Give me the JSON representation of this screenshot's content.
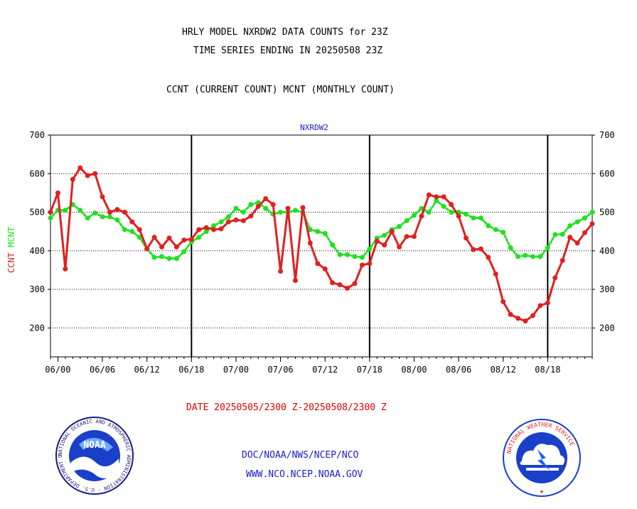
{
  "header": {
    "title_line1": "HRLY MODEL NXRDW2 DATA COUNTS for 23Z",
    "title_line2": "TIME SERIES ENDING IN 20250508 23Z",
    "subtitle": "CCNT (CURRENT COUNT) MCNT (MONTHLY COUNT)"
  },
  "footer": {
    "date_range": "DATE 20250505/2300 Z-20250508/2300 Z",
    "org_path": "DOC/NOAA/NWS/NCEP/NCO",
    "website": "WWW.NCO.NCEP.NOAA.GOV"
  },
  "logos": {
    "noaa_text": "NOAA",
    "noaa_ring_text": "NATIONAL OCEANIC AND ATMOSPHERIC ADMINISTRATION · U.S. DEPARTMENT OF COMMERCE ·",
    "nws_ring_text": "NATIONAL WEATHER SERVICE"
  },
  "chart_data": {
    "type": "line",
    "title": "NXRDW2",
    "ylabel_parts": [
      "CCNT",
      "MCNT"
    ],
    "ylim": [
      125,
      700
    ],
    "xlim": [
      0,
      73
    ],
    "yticks": [
      200,
      300,
      400,
      500,
      600,
      700
    ],
    "xticks": [
      {
        "x": 1,
        "label": "06/00"
      },
      {
        "x": 7,
        "label": "06/06"
      },
      {
        "x": 13,
        "label": "06/12"
      },
      {
        "x": 19,
        "label": "06/18"
      },
      {
        "x": 25,
        "label": "07/00"
      },
      {
        "x": 31,
        "label": "07/06"
      },
      {
        "x": 37,
        "label": "07/12"
      },
      {
        "x": 43,
        "label": "07/18"
      },
      {
        "x": 49,
        "label": "08/00"
      },
      {
        "x": 55,
        "label": "08/06"
      },
      {
        "x": 61,
        "label": "08/12"
      },
      {
        "x": 67,
        "label": "08/18"
      }
    ],
    "day_boundaries": [
      19,
      43,
      67
    ],
    "grid": "horizontal-dotted",
    "colors": {
      "ccnt": "#e02020",
      "mcnt": "#22e022",
      "title": "#1a1ad0",
      "axis": "#000000"
    },
    "series": [
      {
        "name": "CCNT",
        "color": "#e02020",
        "values": [
          500,
          550,
          353,
          585,
          615,
          595,
          600,
          540,
          500,
          507,
          500,
          475,
          455,
          405,
          435,
          410,
          433,
          410,
          428,
          430,
          455,
          460,
          455,
          457,
          475,
          480,
          478,
          490,
          515,
          535,
          520,
          347,
          510,
          323,
          512,
          420,
          367,
          353,
          317,
          312,
          303,
          315,
          363,
          367,
          425,
          415,
          450,
          410,
          437,
          437,
          490,
          545,
          540,
          540,
          520,
          490,
          433,
          403,
          405,
          383,
          340,
          268,
          235,
          225,
          218,
          232,
          258,
          265,
          330,
          375,
          435,
          420,
          447,
          470
        ]
      },
      {
        "name": "MCNT",
        "color": "#22e022",
        "values": [
          485,
          505,
          505,
          520,
          505,
          485,
          498,
          488,
          488,
          480,
          455,
          450,
          435,
          405,
          383,
          385,
          380,
          380,
          398,
          423,
          435,
          450,
          465,
          475,
          488,
          510,
          500,
          520,
          525,
          510,
          495,
          500,
          500,
          505,
          500,
          455,
          450,
          445,
          415,
          390,
          390,
          385,
          383,
          405,
          433,
          440,
          455,
          463,
          478,
          492,
          510,
          500,
          530,
          515,
          500,
          500,
          495,
          485,
          485,
          465,
          455,
          448,
          408,
          385,
          388,
          385,
          385,
          408,
          442,
          443,
          465,
          475,
          485,
          500
        ]
      }
    ]
  }
}
